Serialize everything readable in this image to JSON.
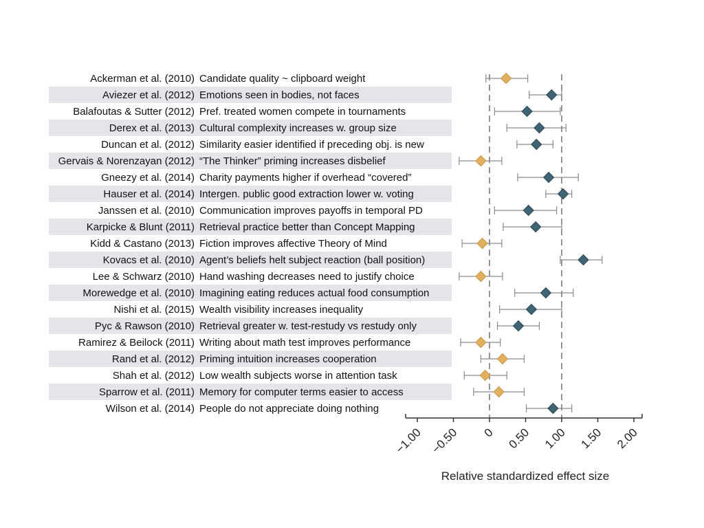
{
  "chart_data": {
    "type": "forest-plot",
    "xlabel": "Relative standardized effect size",
    "xlim": [
      -1.2,
      2.1
    ],
    "xticks": [
      -1.0,
      -0.5,
      0,
      0.5,
      1.0,
      1.5,
      2.0
    ],
    "tick_labels": [
      "−1.00",
      "−0.50",
      "0",
      "0.50",
      "1.00",
      "1.50",
      "2.00"
    ],
    "reference_lines": [
      0,
      1.0
    ],
    "colors": {
      "replicated": "#3f6475",
      "not_replicated": "#e2b15f",
      "stripe": "#e4e5ea"
    },
    "studies": [
      {
        "study": "Ackerman et al. (2010)",
        "finding": "Candidate quality ~ clipboard weight",
        "effect": 0.23,
        "ci": [
          -0.05,
          0.53
        ],
        "replicated": false
      },
      {
        "study": "Aviezer et al. (2012)",
        "finding": "Emotions seen in bodies, not faces",
        "effect": 0.86,
        "ci": [
          0.55,
          1.0
        ],
        "replicated": true
      },
      {
        "study": "Balafoutas & Sutter  (2012)",
        "finding": "Pref. treated women compete in tournaments",
        "effect": 0.52,
        "ci": [
          0.07,
          0.98
        ],
        "replicated": true
      },
      {
        "study": "Derex et al. (2013)",
        "finding": "Cultural complexity increases w. group size",
        "effect": 0.69,
        "ci": [
          0.24,
          1.06
        ],
        "replicated": true
      },
      {
        "study": "Duncan et al. (2012)",
        "finding": "Similarity easier identified if preceding obj. is new",
        "effect": 0.65,
        "ci": [
          0.38,
          0.88
        ],
        "replicated": true
      },
      {
        "study": "Gervais & Norenzayan (2012)",
        "finding": "“The Thinker” priming increases disbelief",
        "effect": -0.12,
        "ci": [
          -0.42,
          0.17
        ],
        "replicated": false
      },
      {
        "study": "Gneezy et al. (2014)",
        "finding": "Charity payments higher if overhead “covered”",
        "effect": 0.82,
        "ci": [
          0.39,
          1.23
        ],
        "replicated": true
      },
      {
        "study": "Hauser et al. (2014)",
        "finding": "Intergen. public good extraction lower w. voting",
        "effect": 1.02,
        "ci": [
          0.78,
          1.14
        ],
        "replicated": true
      },
      {
        "study": "Janssen et al. (2010)",
        "finding": "Communication improves payoffs in temporal PD",
        "effect": 0.54,
        "ci": [
          0.07,
          0.93
        ],
        "replicated": true
      },
      {
        "study": "Karpicke & Blunt (2011)",
        "finding": "Retrieval practice better than Concept Mapping",
        "effect": 0.64,
        "ci": [
          0.19,
          1.0
        ],
        "replicated": true
      },
      {
        "study": "Kidd & Castano (2013)",
        "finding": "Fiction improves affective Theory of Mind",
        "effect": -0.1,
        "ci": [
          -0.38,
          0.17
        ],
        "replicated": false
      },
      {
        "study": "Kovacs et al. (2010)",
        "finding": "Agent’s beliefs helt subject reaction (ball position)",
        "effect": 1.3,
        "ci": [
          0.98,
          1.56
        ],
        "replicated": true
      },
      {
        "study": "Lee & Schwarz (2010)",
        "finding": "Hand washing decreases need to justify choice",
        "effect": -0.12,
        "ci": [
          -0.42,
          0.18
        ],
        "replicated": false
      },
      {
        "study": "Morewedge et al. (2010)",
        "finding": "Imagining eating reduces actual food consumption",
        "effect": 0.78,
        "ci": [
          0.35,
          1.16
        ],
        "replicated": true
      },
      {
        "study": "Nishi et al. (2015)",
        "finding": "Wealth visibility increases inequality",
        "effect": 0.58,
        "ci": [
          0.14,
          1.0
        ],
        "replicated": true
      },
      {
        "study": "Pyc & Rawson (2010)",
        "finding": "Retrieval greater w. test-restudy vs restudy only",
        "effect": 0.4,
        "ci": [
          0.11,
          0.69
        ],
        "replicated": true
      },
      {
        "study": "Ramirez & Beilock (2011)",
        "finding": "Writing about math test improves performance",
        "effect": -0.12,
        "ci": [
          -0.4,
          0.15
        ],
        "replicated": false
      },
      {
        "study": "Rand et al. (2012)",
        "finding": "Priming intuition increases cooperation",
        "effect": 0.18,
        "ci": [
          -0.12,
          0.48
        ],
        "replicated": false
      },
      {
        "study": "Shah et al. (2012)",
        "finding": "Low wealth subjects worse in attention task",
        "effect": -0.06,
        "ci": [
          -0.35,
          0.24
        ],
        "replicated": false
      },
      {
        "study": "Sparrow et al. (2011)",
        "finding": "Memory for computer terms easier to access",
        "effect": 0.13,
        "ci": [
          -0.22,
          0.48
        ],
        "replicated": false
      },
      {
        "study": "Wilson et al. (2014)",
        "finding": "People do not appreciate doing nothing",
        "effect": 0.88,
        "ci": [
          0.51,
          1.14
        ],
        "replicated": true
      }
    ]
  }
}
